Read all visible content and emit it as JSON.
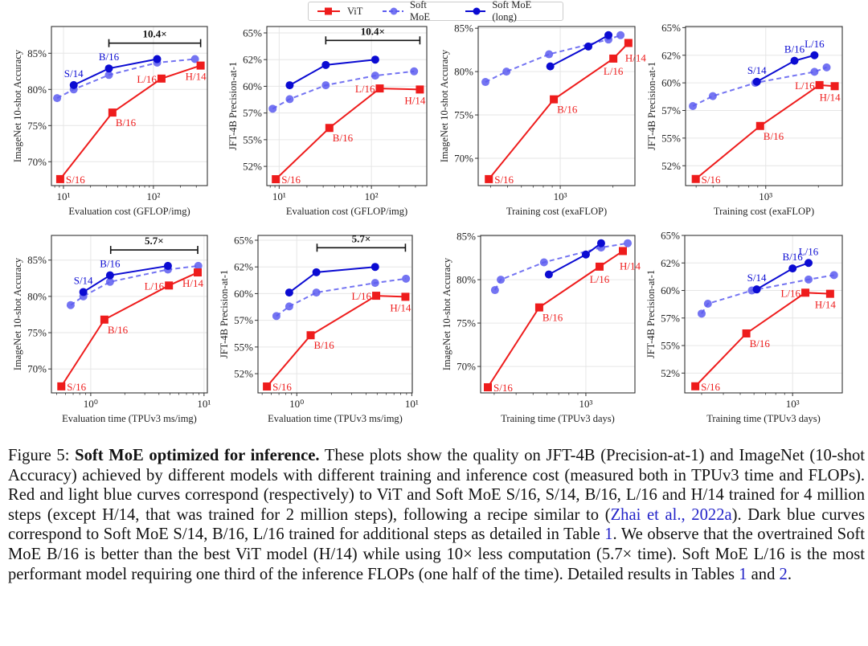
{
  "legend": {
    "items": [
      {
        "label": "ViT",
        "color": "#ee1c1c",
        "style": "solid-square"
      },
      {
        "label": "Soft MoE",
        "color": "#5c5cf0",
        "style": "dashed-circle"
      },
      {
        "label": "Soft MoE (long)",
        "color": "#0b0bd2",
        "style": "solid-circle"
      }
    ]
  },
  "chart_data": [
    {
      "type": "line",
      "xscale": "log",
      "xlabel": "Evaluation cost (GFLOP/img)",
      "ylabel": "ImageNet 10-shot Accuracy",
      "xlim": [
        7.35,
        398
      ],
      "ylim": [
        66.7,
        88.7
      ],
      "xticks": [
        {
          "value": 10,
          "label": "10¹"
        },
        {
          "value": 100,
          "label": "10²"
        }
      ],
      "yticks": [
        {
          "value": 70,
          "label": "70%"
        },
        {
          "value": 75,
          "label": "75%"
        },
        {
          "value": 80,
          "label": "80%"
        },
        {
          "value": 85,
          "label": "85%"
        }
      ],
      "series": [
        {
          "name": "Soft MoE",
          "x": [
            8.5,
            13,
            32,
            110,
            290
          ],
          "y": [
            78.8,
            80.0,
            82.0,
            83.7,
            84.2
          ],
          "labels": [
            "",
            "",
            "",
            "",
            ""
          ]
        },
        {
          "name": "Soft MoE (long)",
          "x": [
            13,
            32,
            110
          ],
          "y": [
            80.6,
            82.9,
            84.2
          ],
          "labels": [
            "S/14",
            "B/16",
            ""
          ]
        },
        {
          "name": "ViT",
          "x": [
            9.2,
            35,
            123,
            335
          ],
          "y": [
            67.6,
            76.8,
            81.5,
            83.3
          ],
          "labels": [
            "S/16",
            "B/16",
            "L/16",
            "H/14"
          ]
        }
      ],
      "annotation": {
        "text": "10.4×",
        "x": [
          32,
          335
        ],
        "y": 86.4
      }
    },
    {
      "type": "line",
      "xscale": "log",
      "xlabel": "Evaluation cost (GFLOP/img)",
      "ylabel": "JFT-4B Precision-at-1",
      "xlim": [
        7.35,
        398
      ],
      "ylim": [
        50.7,
        65.6
      ],
      "xticks": [
        {
          "value": 10,
          "label": "10¹"
        },
        {
          "value": 100,
          "label": "10²"
        }
      ],
      "yticks": [
        {
          "value": 52.5,
          "label": "52%"
        },
        {
          "value": 55,
          "label": "55%"
        },
        {
          "value": 57.5,
          "label": "57%"
        },
        {
          "value": 60,
          "label": "60%"
        },
        {
          "value": 62.5,
          "label": "62%"
        },
        {
          "value": 65,
          "label": "65%"
        }
      ],
      "series": [
        {
          "name": "Soft MoE",
          "x": [
            8.5,
            13,
            32,
            110,
            290
          ],
          "y": [
            57.9,
            58.8,
            60.1,
            61.0,
            61.4
          ],
          "labels": [
            "",
            "",
            "",
            "",
            ""
          ]
        },
        {
          "name": "Soft MoE (long)",
          "x": [
            13,
            32,
            110
          ],
          "y": [
            60.1,
            62.0,
            62.5
          ],
          "labels": [
            "",
            "",
            ""
          ]
        },
        {
          "name": "ViT",
          "x": [
            9.2,
            35,
            123,
            335
          ],
          "y": [
            51.3,
            56.1,
            59.8,
            59.7
          ],
          "labels": [
            "S/16",
            "B/16",
            "L/16",
            "H/14"
          ]
        }
      ],
      "annotation": {
        "text": "10.4×",
        "x": [
          32,
          335
        ],
        "y": 64.3
      }
    },
    {
      "type": "line",
      "xscale": "log",
      "xlabel": "Training cost (exaFLOP)",
      "ylabel": "ImageNet 10-shot Accuracy",
      "xlim": [
        340,
        2670
      ],
      "ylim": [
        66.85,
        85.2
      ],
      "xticks": [
        {
          "value": 1000,
          "label": "10³"
        }
      ],
      "yticks": [
        {
          "value": 70,
          "label": "70%"
        },
        {
          "value": 75,
          "label": "75%"
        },
        {
          "value": 80,
          "label": "80%"
        },
        {
          "value": 85,
          "label": "85%"
        }
      ],
      "series": [
        {
          "name": "Soft MoE",
          "x": [
            374,
            493,
            863,
            1885,
            2210
          ],
          "y": [
            78.8,
            80.0,
            82.0,
            83.7,
            84.2
          ],
          "labels": [
            "",
            "",
            "",
            "",
            ""
          ]
        },
        {
          "name": "Soft MoE (long)",
          "x": [
            877,
            1447,
            1885
          ],
          "y": [
            80.6,
            82.9,
            84.2
          ],
          "labels": [
            "",
            "",
            ""
          ]
        },
        {
          "name": "ViT",
          "x": [
            391,
            919,
            2010,
            2450
          ],
          "y": [
            67.6,
            76.8,
            81.5,
            83.3
          ],
          "labels": [
            "S/16",
            "B/16",
            "L/16",
            "H/14"
          ]
        }
      ]
    },
    {
      "type": "line",
      "xscale": "log",
      "xlabel": "Training cost (exaFLOP)",
      "ylabel": "JFT-4B Precision-at-1",
      "xlim": [
        348,
        2740
      ],
      "ylim": [
        50.7,
        65.1
      ],
      "xticks": [
        {
          "value": 1000,
          "label": "10³"
        }
      ],
      "yticks": [
        {
          "value": 52.5,
          "label": "52%"
        },
        {
          "value": 55,
          "label": "55%"
        },
        {
          "value": 57.5,
          "label": "57%"
        },
        {
          "value": 60,
          "label": "60%"
        },
        {
          "value": 62.5,
          "label": "62%"
        },
        {
          "value": 65,
          "label": "65%"
        }
      ],
      "series": [
        {
          "name": "Soft MoE",
          "x": [
            383,
            498,
            872,
            1900,
            2230
          ],
          "y": [
            57.9,
            58.8,
            60.0,
            61.0,
            61.4
          ],
          "labels": [
            "",
            "",
            "",
            "",
            ""
          ]
        },
        {
          "name": "Soft MoE (long)",
          "x": [
            890,
            1460,
            1900
          ],
          "y": [
            60.1,
            62.0,
            62.5
          ],
          "labels": [
            "S/14",
            "B/16",
            "L/16"
          ]
        },
        {
          "name": "ViT",
          "x": [
            398,
            929,
            2030,
            2480
          ],
          "y": [
            51.3,
            56.1,
            59.8,
            59.7
          ],
          "labels": [
            "S/16",
            "B/16",
            "L/16",
            "H/14"
          ]
        }
      ]
    },
    {
      "type": "line",
      "xscale": "log",
      "xlabel": "Evaluation time (TPUv3 ms/img)",
      "ylabel": "ImageNet 10-shot Accuracy",
      "xlim": [
        0.45,
        10.7
      ],
      "ylim": [
        66.7,
        88.4
      ],
      "xticks": [
        {
          "value": 1,
          "label": "10⁰"
        },
        {
          "value": 10,
          "label": "10¹"
        }
      ],
      "yticks": [
        {
          "value": 70,
          "label": "70%"
        },
        {
          "value": 75,
          "label": "75%"
        },
        {
          "value": 80,
          "label": "80%"
        },
        {
          "value": 85,
          "label": "85%"
        }
      ],
      "series": [
        {
          "name": "Soft MoE",
          "x": [
            0.665,
            0.86,
            1.48,
            4.8,
            8.9
          ],
          "y": [
            78.8,
            80.0,
            82.0,
            83.7,
            84.2
          ],
          "labels": [
            "",
            "",
            "",
            "",
            ""
          ]
        },
        {
          "name": "Soft MoE (long)",
          "x": [
            0.86,
            1.48,
            4.8
          ],
          "y": [
            80.6,
            82.9,
            84.2
          ],
          "labels": [
            "S/14",
            "B/16",
            ""
          ]
        },
        {
          "name": "ViT",
          "x": [
            0.55,
            1.32,
            4.9,
            8.8
          ],
          "y": [
            67.6,
            76.8,
            81.5,
            83.3
          ],
          "labels": [
            "S/16",
            "B/16",
            "L/16",
            "H/14"
          ]
        }
      ],
      "annotation": {
        "text": "5.7×",
        "x": [
          1.5,
          8.8
        ],
        "y": 86.4
      }
    },
    {
      "type": "line",
      "xscale": "log",
      "xlabel": "Evaluation time (TPUv3 ms/img)",
      "ylabel": "JFT-4B Precision-at-1",
      "xlim": [
        0.46,
        10.1
      ],
      "ylim": [
        50.7,
        65.45
      ],
      "xticks": [
        {
          "value": 1,
          "label": "10⁰"
        },
        {
          "value": 10,
          "label": "10¹"
        }
      ],
      "yticks": [
        {
          "value": 52.5,
          "label": "52%"
        },
        {
          "value": 55,
          "label": "55%"
        },
        {
          "value": 57.5,
          "label": "57%"
        },
        {
          "value": 60,
          "label": "60%"
        },
        {
          "value": 62.5,
          "label": "62%"
        },
        {
          "value": 65,
          "label": "65%"
        }
      ],
      "series": [
        {
          "name": "Soft MoE",
          "x": [
            0.665,
            0.86,
            1.48,
            4.8,
            8.9
          ],
          "y": [
            57.9,
            58.8,
            60.1,
            61.0,
            61.4
          ],
          "labels": [
            "",
            "",
            "",
            "",
            ""
          ]
        },
        {
          "name": "Soft MoE (long)",
          "x": [
            0.86,
            1.48,
            4.8
          ],
          "y": [
            60.1,
            62.0,
            62.5
          ],
          "labels": [
            "",
            "",
            ""
          ]
        },
        {
          "name": "ViT",
          "x": [
            0.55,
            1.32,
            4.9,
            8.8
          ],
          "y": [
            51.3,
            56.1,
            59.8,
            59.7
          ],
          "labels": [
            "S/16",
            "B/16",
            "L/16",
            "H/14"
          ]
        }
      ],
      "annotation": {
        "text": "5.7×",
        "x": [
          1.5,
          8.8
        ],
        "y": 64.3
      }
    },
    {
      "type": "line",
      "xscale": "log",
      "xlabel": "Training time (TPUv3 days)",
      "ylabel": "ImageNet 10-shot Accuracy",
      "xlim": [
        251,
        1905
      ],
      "ylim": [
        66.95,
        85.1
      ],
      "xticks": [
        {
          "value": 1000,
          "label": "10³"
        }
      ],
      "yticks": [
        {
          "value": 70,
          "label": "70%"
        },
        {
          "value": 75,
          "label": "75%"
        },
        {
          "value": 80,
          "label": "80%"
        },
        {
          "value": 85,
          "label": "85%"
        }
      ],
      "series": [
        {
          "name": "Soft MoE",
          "x": [
            303,
            327,
            577,
            1222,
            1733
          ],
          "y": [
            78.8,
            80.0,
            82.0,
            83.7,
            84.2
          ],
          "labels": [
            "",
            "",
            "",
            "",
            ""
          ]
        },
        {
          "name": "Soft MoE (long)",
          "x": [
            615,
            1000,
            1222
          ],
          "y": [
            80.6,
            82.9,
            84.2
          ],
          "labels": [
            "",
            "",
            ""
          ]
        },
        {
          "name": "ViT",
          "x": [
            276,
            542,
            1197,
            1626
          ],
          "y": [
            67.6,
            76.8,
            81.5,
            83.3
          ],
          "labels": [
            "S/16",
            "B/16",
            "L/16",
            "H/14"
          ]
        }
      ]
    },
    {
      "type": "line",
      "xscale": "log",
      "xlabel": "Training time (TPUv3 days)",
      "ylabel": "JFT-4B Precision-at-1",
      "xlim": [
        240,
        1930
      ],
      "ylim": [
        50.7,
        65.0
      ],
      "xticks": [
        {
          "value": 1000,
          "label": "10³"
        }
      ],
      "yticks": [
        {
          "value": 52.5,
          "label": "52%"
        },
        {
          "value": 55,
          "label": "55%"
        },
        {
          "value": 57.5,
          "label": "57%"
        },
        {
          "value": 60,
          "label": "60%"
        },
        {
          "value": 62.5,
          "label": "62%"
        },
        {
          "value": 65,
          "label": "65%"
        }
      ],
      "series": [
        {
          "name": "Soft MoE",
          "x": [
            300,
            326,
            583,
            1235,
            1730
          ],
          "y": [
            57.9,
            58.8,
            60.0,
            61.0,
            61.4
          ],
          "labels": [
            "",
            "",
            "",
            "",
            ""
          ]
        },
        {
          "name": "Soft MoE (long)",
          "x": [
            622,
            1000,
            1235
          ],
          "y": [
            60.1,
            62.0,
            62.5
          ],
          "labels": [
            "S/14",
            "B/16",
            "L/16"
          ]
        },
        {
          "name": "ViT",
          "x": [
            276,
            542,
            1184,
            1643
          ],
          "y": [
            51.3,
            56.1,
            59.8,
            59.7
          ],
          "labels": [
            "S/16",
            "B/16",
            "L/16",
            "H/14"
          ]
        }
      ]
    }
  ],
  "caption": {
    "prefix": "Figure 5: ",
    "title": "Soft MoE optimized for inference.",
    "text1": " These plots show the quality on JFT-4B (Precision-at-1) and ImageNet (10-shot Accuracy) achieved by different models with different training and inference cost (measured both in TPUv3 time and FLOPs). Red and light blue curves correspond (respectively) to ViT and Soft MoE S/16, S/14, B/16, L/16 and H/14 trained for 4 million steps (except H/14, that was trained for 2 million steps), following a recipe similar to (",
    "cite1": "Zhai et al., 2022a",
    "text2": "). Dark blue curves correspond to Soft MoE S/14, B/16, L/16 trained for additional steps as detailed in Table ",
    "cite2": "1",
    "text3": ". We observe that the overtrained Soft MoE B/16 is better than the best ViT model (H/14) while using 10× less computation (5.7× time). Soft MoE L/16 is the most performant model requiring one third of the inference FLOPs (one half of the time). Detailed results in Tables ",
    "cite3": "1",
    "text4": " and ",
    "cite4": "2",
    "text5": "."
  }
}
